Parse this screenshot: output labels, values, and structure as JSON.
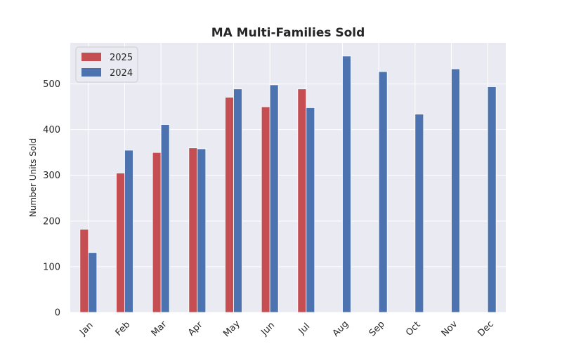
{
  "chart_data": {
    "type": "bar",
    "title": "MA Multi-Families Sold",
    "xlabel": "",
    "ylabel": "Number Units Sold",
    "categories": [
      "Jan",
      "Feb",
      "Mar",
      "Apr",
      "May",
      "Jun",
      "Jul",
      "Aug",
      "Sep",
      "Oct",
      "Nov",
      "Dec"
    ],
    "series": [
      {
        "name": "2025",
        "color": "#c44e52",
        "values": [
          182,
          305,
          350,
          360,
          471,
          450,
          489,
          null,
          null,
          null,
          null,
          null
        ]
      },
      {
        "name": "2024",
        "color": "#4c72b0",
        "values": [
          131,
          355,
          411,
          358,
          489,
          498,
          448,
          561,
          527,
          434,
          533,
          494
        ]
      }
    ],
    "yticks": [
      0,
      100,
      200,
      300,
      400,
      500
    ],
    "ylim": [
      0,
      590
    ],
    "grid": true,
    "legend": "top-left",
    "plot_background": "#eaeaf2"
  }
}
